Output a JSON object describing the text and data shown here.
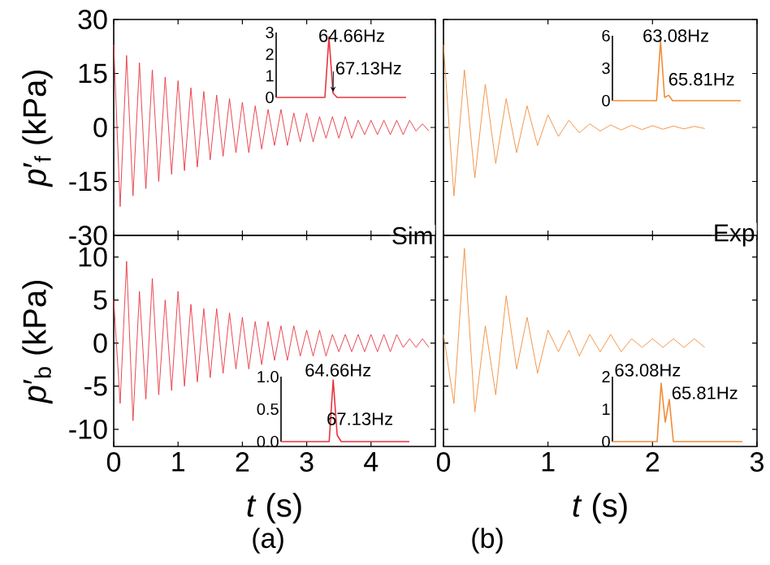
{
  "chart_data": [
    {
      "type": "line",
      "ylabel": "*p*′$_{f}$ (kPa)",
      "annotations": [
        "Sim"
      ],
      "xlim": [
        0,
        5
      ],
      "ylim": [
        -30,
        30
      ],
      "xticks": [
        0,
        1,
        2,
        3,
        4,
        5
      ],
      "yticks": [
        -30,
        -15,
        0,
        15,
        30
      ],
      "tick_labels": "y",
      "x": [
        0,
        0.1,
        0.2,
        0.3,
        0.4,
        0.5,
        0.6,
        0.7,
        0.8,
        0.9,
        1,
        1.1,
        1.2,
        1.3,
        1.4,
        1.5,
        1.6,
        1.7,
        1.8,
        1.9,
        2,
        2.1,
        2.2,
        2.3,
        2.4,
        2.5,
        2.6,
        2.7,
        2.8,
        2.9,
        3,
        3.1,
        3.2,
        3.3,
        3.4,
        3.5,
        3.6,
        3.7,
        3.8,
        3.9,
        4,
        4.1,
        4.2,
        4.3,
        4.4,
        4.5,
        4.6,
        4.7,
        4.8,
        4.9
      ],
      "series": [
        {
          "color": "#e8343f",
          "values": [
            23,
            -22,
            20,
            -19,
            18,
            -17,
            16,
            -15,
            14,
            -13,
            13,
            -12,
            11,
            -11,
            10,
            -9,
            9,
            -8,
            8,
            -7,
            7,
            -7,
            6,
            -6,
            5,
            -5,
            5,
            -5,
            4,
            -4,
            4,
            -4,
            3,
            -3,
            3,
            -3,
            3,
            -3,
            2,
            -2,
            2,
            -2,
            2,
            -2,
            2,
            -2,
            2,
            -1,
            1,
            -1
          ]
        }
      ]
    },
    {
      "type": "line",
      "annotations": [
        "64.66Hz",
        "67.13Hz"
      ],
      "ylim": [
        0,
        3
      ],
      "yticks": [
        0,
        1,
        2,
        3
      ],
      "tick_labels": "y",
      "categories": [
        null,
        null,
        null,
        null,
        null,
        null,
        null,
        null,
        null,
        null,
        null,
        null,
        null,
        null,
        null,
        null,
        null,
        null,
        null,
        null,
        null,
        null,
        null,
        null,
        null,
        null,
        null,
        null,
        null,
        null,
        null,
        null,
        null
      ],
      "series": [
        {
          "color": "#e8343f",
          "values": [
            0,
            0,
            0,
            0,
            0,
            0,
            0,
            0,
            0,
            0,
            0,
            0,
            0,
            2.8,
            0.2,
            0,
            0,
            0,
            0,
            0,
            0,
            0,
            0,
            0,
            0,
            0,
            0,
            0,
            0,
            0,
            0,
            0,
            0
          ]
        }
      ]
    },
    {
      "type": "line",
      "annotations": [
        "Exp"
      ],
      "xlim": [
        0,
        3
      ],
      "ylim": [
        -30,
        30
      ],
      "xticks": [
        0,
        1,
        2,
        3
      ],
      "yticks": [
        -30,
        -15,
        0,
        15,
        30
      ],
      "tick_labels": false,
      "x": [
        0,
        0.1,
        0.2,
        0.3,
        0.4,
        0.5,
        0.6,
        0.7,
        0.8,
        0.9,
        1,
        1.1,
        1.2,
        1.3,
        1.4,
        1.5,
        1.6,
        1.7,
        1.8,
        1.9,
        2,
        2.1,
        2.2,
        2.3,
        2.4,
        2.5
      ],
      "series": [
        {
          "color": "#f28c38",
          "values": [
            23,
            -19,
            16,
            -14,
            12,
            -10,
            8,
            -7,
            6,
            -5,
            3.5,
            -2.5,
            2,
            -1.5,
            1,
            -1,
            0.7,
            -0.7,
            0.6,
            -0.6,
            0.5,
            -0.5,
            0.4,
            -0.4,
            0.3,
            -0.3
          ]
        }
      ]
    },
    {
      "type": "line",
      "annotations": [
        "63.08Hz",
        "65.81Hz"
      ],
      "ylim": [
        0,
        6
      ],
      "yticks": [
        0,
        3,
        6
      ],
      "tick_labels": "y",
      "categories": [
        null,
        null,
        null,
        null,
        null,
        null,
        null,
        null,
        null,
        null,
        null,
        null,
        null,
        null,
        null,
        null,
        null,
        null,
        null,
        null,
        null,
        null,
        null,
        null,
        null,
        null,
        null,
        null,
        null,
        null,
        null,
        null,
        null
      ],
      "series": [
        {
          "color": "#f28c38",
          "values": [
            0,
            0,
            0,
            0,
            0,
            0,
            0,
            0,
            0,
            0,
            0,
            0,
            5.5,
            0.3,
            0.5,
            0,
            0,
            0,
            0,
            0,
            0,
            0,
            0,
            0,
            0,
            0,
            0,
            0,
            0,
            0,
            0,
            0,
            0
          ]
        }
      ]
    },
    {
      "type": "line",
      "ylabel": "*p*′$_{b}$ (kPa)",
      "xlabel": "*t* (s)",
      "annotations": [
        "(a)"
      ],
      "xlim": [
        0,
        5
      ],
      "ylim": [
        -12,
        12.5
      ],
      "xticks": [
        0,
        1,
        2,
        3,
        4
      ],
      "yticks": [
        -10,
        -5,
        0,
        5,
        10
      ],
      "x": [
        0,
        0.1,
        0.2,
        0.3,
        0.4,
        0.5,
        0.6,
        0.7,
        0.8,
        0.9,
        1,
        1.1,
        1.2,
        1.3,
        1.4,
        1.5,
        1.6,
        1.7,
        1.8,
        1.9,
        2,
        2.1,
        2.2,
        2.3,
        2.4,
        2.5,
        2.6,
        2.7,
        2.8,
        2.9,
        3,
        3.1,
        3.2,
        3.3,
        3.4,
        3.5,
        3.6,
        3.7,
        3.8,
        3.9,
        4,
        4.1,
        4.2,
        4.3,
        4.4,
        4.5,
        4.6,
        4.7,
        4.8,
        4.9
      ],
      "series": [
        {
          "color": "#e8343f",
          "values": [
            5,
            -7,
            9.5,
            -9,
            6,
            -6.5,
            7.5,
            -6,
            5,
            -5.5,
            6,
            -5,
            4.5,
            -4.5,
            4,
            -4,
            4,
            -3.5,
            3.5,
            -3,
            3,
            -3,
            2.5,
            -2.5,
            2.5,
            -2,
            2,
            -2,
            2,
            -1.5,
            1.5,
            -1.5,
            1.5,
            -1.5,
            1,
            -1,
            1,
            -1,
            1,
            -1,
            1,
            -1,
            1,
            -1,
            1,
            -0.5,
            0.5,
            -0.5,
            0.5,
            -0.5
          ]
        }
      ]
    },
    {
      "type": "line",
      "annotations": [
        "64.66Hz",
        "67.13Hz"
      ],
      "ylim": [
        0,
        1
      ],
      "yticks": [
        {
          "value": 0,
          "label": "0.0"
        },
        0.5,
        {
          "value": 1,
          "label": "1.0"
        }
      ],
      "tick_labels": "y",
      "categories": [
        null,
        null,
        null,
        null,
        null,
        null,
        null,
        null,
        null,
        null,
        null,
        null,
        null,
        null,
        null,
        null,
        null,
        null,
        null,
        null,
        null,
        null,
        null,
        null,
        null,
        null,
        null,
        null,
        null,
        null,
        null,
        null,
        null
      ],
      "series": [
        {
          "color": "#e8343f",
          "values": [
            0,
            0,
            0,
            0,
            0,
            0,
            0,
            0,
            0,
            0,
            0,
            0,
            0,
            0.95,
            0.1,
            0,
            0,
            0,
            0,
            0,
            0,
            0,
            0,
            0,
            0,
            0,
            0,
            0,
            0,
            0,
            0,
            0,
            0
          ]
        }
      ]
    },
    {
      "type": "line",
      "xlabel": "*t* (s)",
      "annotations": [
        "(b)"
      ],
      "xlim": [
        0,
        3
      ],
      "ylim": [
        -12,
        12.5
      ],
      "xticks": [
        0,
        1,
        2,
        3
      ],
      "yticks": [
        -10,
        -5,
        0,
        5,
        10
      ],
      "tick_labels": "x",
      "x": [
        0,
        0.1,
        0.2,
        0.3,
        0.4,
        0.5,
        0.6,
        0.7,
        0.8,
        0.9,
        1,
        1.1,
        1.2,
        1.3,
        1.4,
        1.5,
        1.6,
        1.7,
        1.8,
        1.9,
        2,
        2.1,
        2.2,
        2.3,
        2.4,
        2.5
      ],
      "series": [
        {
          "color": "#f28c38",
          "values": [
            1,
            -7,
            11,
            -8,
            2,
            -6,
            5.5,
            -3,
            3,
            -3.5,
            1.5,
            -1,
            1.5,
            -1.5,
            1,
            -1,
            1,
            -1,
            0.5,
            -0.5,
            0.5,
            -0.5,
            0.5,
            -0.5,
            0.5,
            -0.5
          ]
        }
      ]
    },
    {
      "type": "line",
      "annotations": [
        "63.08Hz",
        "65.81Hz"
      ],
      "ylim": [
        0,
        2
      ],
      "yticks": [
        0,
        1,
        2
      ],
      "tick_labels": "y",
      "categories": [
        null,
        null,
        null,
        null,
        null,
        null,
        null,
        null,
        null,
        null,
        null,
        null,
        null,
        null,
        null,
        null,
        null,
        null,
        null,
        null,
        null,
        null,
        null,
        null,
        null,
        null,
        null,
        null,
        null,
        null,
        null,
        null,
        null
      ],
      "series": [
        {
          "color": "#f28c38",
          "values": [
            0,
            0,
            0,
            0,
            0,
            0,
            0,
            0,
            0,
            0,
            0,
            0,
            1.8,
            0.6,
            1.3,
            0,
            0,
            0,
            0,
            0,
            0,
            0,
            0,
            0,
            0,
            0,
            0,
            0,
            0,
            0,
            0,
            0,
            0
          ]
        }
      ]
    }
  ]
}
